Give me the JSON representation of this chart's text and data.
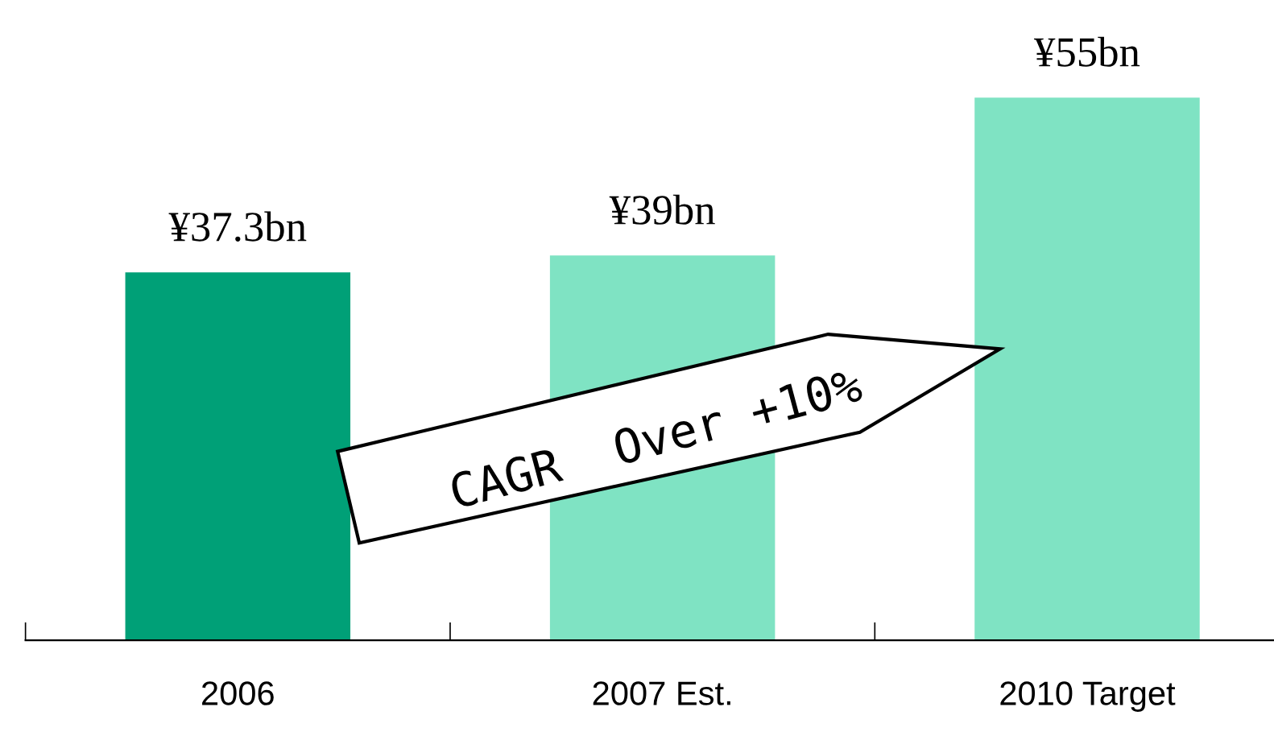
{
  "chart_data": {
    "type": "bar",
    "categories": [
      "2006",
      "2007 Est.",
      "2010 Target"
    ],
    "values": [
      37.3,
      39,
      55
    ],
    "value_labels": [
      "¥37.3bn",
      "¥39bn",
      "¥55bn"
    ],
    "colors": [
      "#00a077",
      "#7fe3c3",
      "#7fe3c3"
    ],
    "annotations": [
      "CAGR  Over +10%"
    ]
  }
}
